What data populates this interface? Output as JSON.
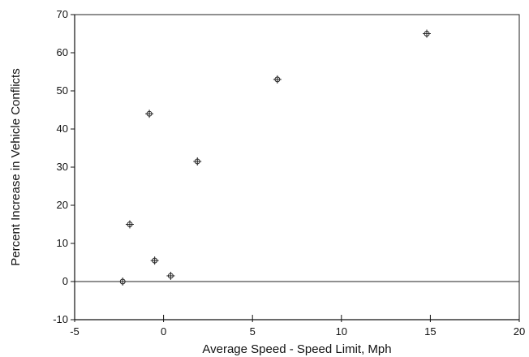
{
  "chart_data": {
    "type": "scatter",
    "title": "",
    "xlabel": "Average Speed - Speed Limit, Mph",
    "ylabel": "Percent Increase in Vehicle Conflicts",
    "xlim": [
      -5,
      20
    ],
    "ylim": [
      -10,
      70
    ],
    "xticks": [
      -5,
      0,
      5,
      10,
      15,
      20
    ],
    "yticks": [
      -10,
      0,
      10,
      20,
      30,
      40,
      50,
      60,
      70
    ],
    "xtick_labels": [
      "-5",
      "0",
      "5",
      "10",
      "15",
      "20"
    ],
    "ytick_labels": [
      "-10",
      "0",
      "10",
      "20",
      "30",
      "40",
      "50",
      "60",
      "70"
    ],
    "zero_line": true,
    "grid": false,
    "marker": "circle-cross",
    "series": [
      {
        "points": [
          {
            "x": -2.3,
            "y": 0
          },
          {
            "x": -1.9,
            "y": 15
          },
          {
            "x": -0.8,
            "y": 44
          },
          {
            "x": -0.5,
            "y": 5.5
          },
          {
            "x": 0.4,
            "y": 1.5
          },
          {
            "x": 1.9,
            "y": 31.5
          },
          {
            "x": 6.4,
            "y": 53
          },
          {
            "x": 14.8,
            "y": 65
          }
        ]
      }
    ]
  }
}
